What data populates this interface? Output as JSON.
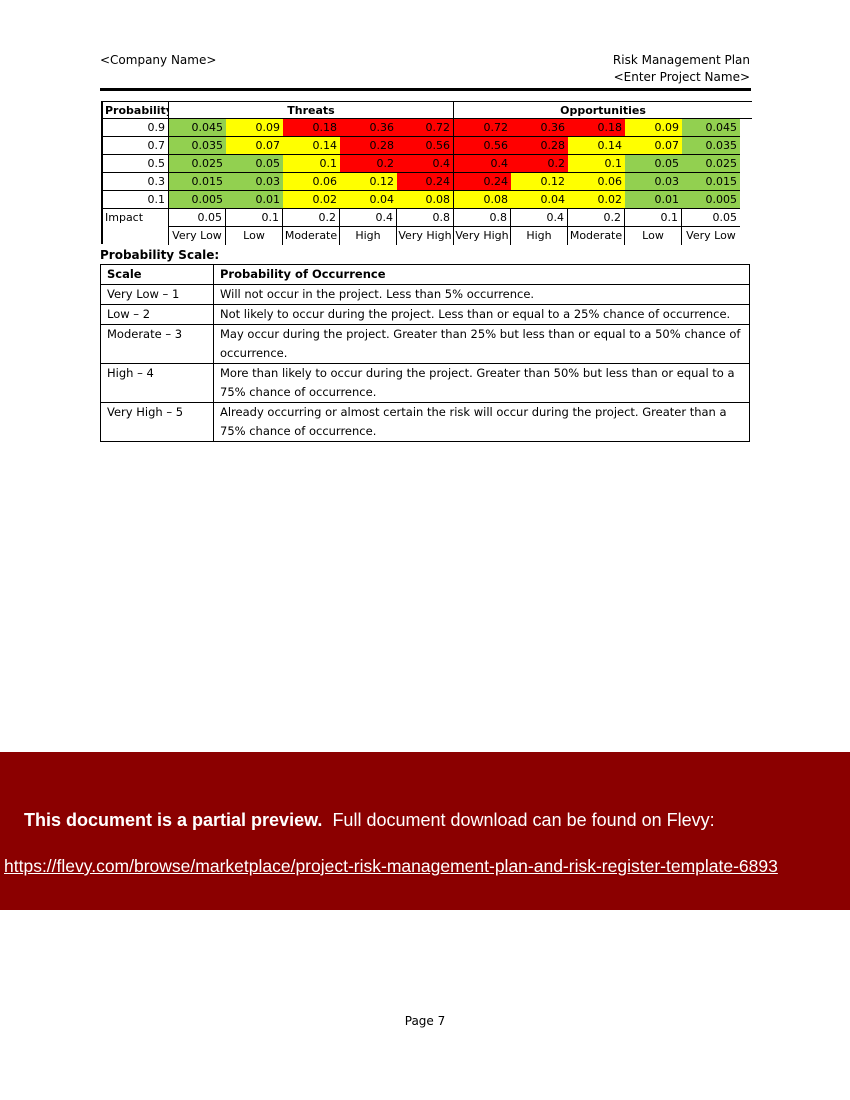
{
  "header": {
    "company": "<Company Name>",
    "doc_title": "Risk Management Plan",
    "project": "<Enter Project Name>"
  },
  "matrix": {
    "probability_label": "Probability",
    "threats_label": "Threats",
    "opportunities_label": "Opportunities",
    "rows": [
      {
        "p": "0.9",
        "cells": [
          "0.045",
          "0.09",
          "0.18",
          "0.36",
          "0.72",
          "0.72",
          "0.36",
          "0.18",
          "0.09",
          "0.045"
        ],
        "colors": [
          "g",
          "y",
          "r",
          "r",
          "r",
          "r",
          "r",
          "r",
          "y",
          "g"
        ]
      },
      {
        "p": "0.7",
        "cells": [
          "0.035",
          "0.07",
          "0.14",
          "0.28",
          "0.56",
          "0.56",
          "0.28",
          "0.14",
          "0.07",
          "0.035"
        ],
        "colors": [
          "g",
          "y",
          "y",
          "r",
          "r",
          "r",
          "r",
          "y",
          "y",
          "g"
        ]
      },
      {
        "p": "0.5",
        "cells": [
          "0.025",
          "0.05",
          "0.1",
          "0.2",
          "0.4",
          "0.4",
          "0.2",
          "0.1",
          "0.05",
          "0.025"
        ],
        "colors": [
          "g",
          "g",
          "y",
          "r",
          "r",
          "r",
          "r",
          "y",
          "g",
          "g"
        ]
      },
      {
        "p": "0.3",
        "cells": [
          "0.015",
          "0.03",
          "0.06",
          "0.12",
          "0.24",
          "0.24",
          "0.12",
          "0.06",
          "0.03",
          "0.015"
        ],
        "colors": [
          "g",
          "g",
          "y",
          "y",
          "r",
          "r",
          "y",
          "y",
          "g",
          "g"
        ]
      },
      {
        "p": "0.1",
        "cells": [
          "0.005",
          "0.01",
          "0.02",
          "0.04",
          "0.08",
          "0.08",
          "0.04",
          "0.02",
          "0.01",
          "0.005"
        ],
        "colors": [
          "g",
          "g",
          "y",
          "y",
          "y",
          "y",
          "y",
          "y",
          "g",
          "g"
        ]
      }
    ],
    "impact_label": "Impact",
    "impact_values": [
      "0.05",
      "0.1",
      "0.2",
      "0.4",
      "0.8",
      "0.8",
      "0.4",
      "0.2",
      "0.1",
      "0.05"
    ],
    "impact_names": [
      "Very Low",
      "Low",
      "Moderate",
      "High",
      "Very High",
      "Very High",
      "High",
      "Moderate",
      "Low",
      "Very Low"
    ],
    "colors": {
      "g": "#92d050",
      "y": "#ffff00",
      "r": "#ff0000"
    }
  },
  "scale": {
    "title": "Probability Scale:",
    "col_scale": "Scale",
    "col_prob": "Probability of Occurrence",
    "rows": [
      {
        "scale": "Very Low – 1",
        "desc": "Will not occur in the project.   Less than 5% occurrence."
      },
      {
        "scale": "Low – 2",
        "desc": "Not likely to occur during the project.  Less than or equal to a 25% chance of occurrence."
      },
      {
        "scale": "Moderate – 3",
        "desc": "May occur during the project.  Greater than 25% but less than or equal to a 50% chance of occurrence."
      },
      {
        "scale": "High – 4",
        "desc": "More than likely to occur during the project.  Greater than 50% but less than or equal to a 75% chance of occurrence."
      },
      {
        "scale": "Very High – 5",
        "desc": "Already occurring or almost certain the risk will occur during the project.  Greater than a 75% chance of occurrence."
      }
    ]
  },
  "banner": {
    "bold": "This document is a partial preview.",
    "rest": "Full document download can be found on Flevy:",
    "link": "https://flevy.com/browse/marketplace/project-risk-management-plan-and-risk-register-template-6893",
    "bg": "#8b0000"
  },
  "footer": {
    "page": "Page 7"
  }
}
